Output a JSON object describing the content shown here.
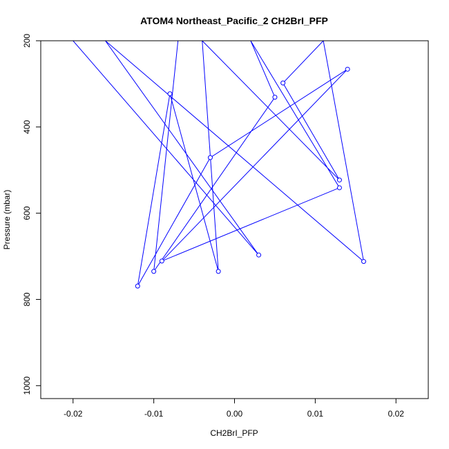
{
  "chart_data": {
    "type": "line",
    "title": "ATOM4 Northeast_Pacific_2 CH2BrI_PFP",
    "xlabel": "CH2BrI_PFP",
    "ylabel": "Pressure (mbar)",
    "xlim": [
      -0.024,
      0.024
    ],
    "ylim": [
      1030,
      200
    ],
    "y_reversed": true,
    "x_ticks": [
      -0.02,
      -0.01,
      0.0,
      0.01,
      0.02
    ],
    "x_tick_labels": [
      "-0.02",
      "-0.01",
      "0.00",
      "0.01",
      "0.02"
    ],
    "y_ticks": [
      200,
      400,
      600,
      800,
      1000
    ],
    "y_tick_labels": [
      "200",
      "400",
      "600",
      "800",
      "1000"
    ],
    "grid": false,
    "legend": "none",
    "series_color": "#0000ff",
    "series": [
      {
        "x": [
          -0.02,
          0.003,
          -0.016,
          0.016,
          0.011,
          0.006,
          0.013,
          -0.004,
          -0.002,
          -0.008,
          -0.012,
          -0.003,
          0.014,
          -0.009,
          0.013,
          0.002,
          0.005,
          -0.01,
          -0.007,
          0.011
        ],
        "y": [
          200,
          697,
          200,
          712,
          200,
          298,
          523,
          200,
          735,
          323,
          769,
          471,
          266,
          711,
          541,
          200,
          331,
          735,
          200,
          200
        ]
      }
    ]
  }
}
